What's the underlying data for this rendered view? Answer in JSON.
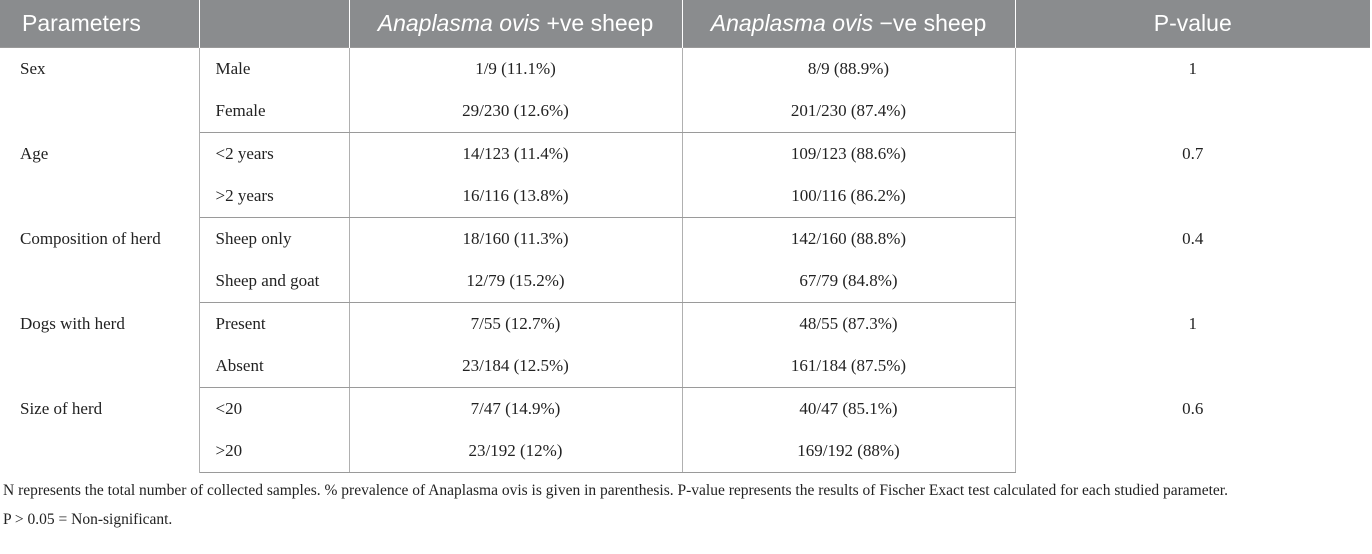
{
  "table": {
    "headers": {
      "parameters": "Parameters",
      "blank": "",
      "positive_italic": "Anaplasma ovis",
      "positive_rest": " +ve sheep",
      "negative_italic": "Anaplasma ovis",
      "negative_rest": " −ve sheep",
      "pvalue": "P-value"
    },
    "groups": [
      {
        "parameter": "Sex",
        "p_value": "1",
        "rows": [
          {
            "level": "Male",
            "positive": "1/9 (11.1%)",
            "negative": "8/9 (88.9%)"
          },
          {
            "level": "Female",
            "positive": "29/230 (12.6%)",
            "negative": "201/230 (87.4%)"
          }
        ]
      },
      {
        "parameter": "Age",
        "p_value": "0.7",
        "rows": [
          {
            "level": "<2 years",
            "positive": "14/123 (11.4%)",
            "negative": "109/123 (88.6%)"
          },
          {
            "level": ">2 years",
            "positive": "16/116 (13.8%)",
            "negative": "100/116 (86.2%)"
          }
        ]
      },
      {
        "parameter": "Composition of herd",
        "p_value": "0.4",
        "rows": [
          {
            "level": "Sheep only",
            "positive": "18/160 (11.3%)",
            "negative": "142/160 (88.8%)"
          },
          {
            "level": "Sheep and goat",
            "positive": "12/79 (15.2%)",
            "negative": "67/79 (84.8%)"
          }
        ]
      },
      {
        "parameter": "Dogs with herd",
        "p_value": "1",
        "rows": [
          {
            "level": "Present",
            "positive": "7/55 (12.7%)",
            "negative": "48/55 (87.3%)"
          },
          {
            "level": "Absent",
            "positive": "23/184 (12.5%)",
            "negative": "161/184 (87.5%)"
          }
        ]
      },
      {
        "parameter": "Size of herd",
        "p_value": "0.6",
        "rows": [
          {
            "level": "<20",
            "positive": "7/47 (14.9%)",
            "negative": "40/47 (85.1%)"
          },
          {
            "level": ">20",
            "positive": "23/192 (12%)",
            "negative": "169/192 (88%)"
          }
        ]
      }
    ]
  },
  "footnotes": {
    "note1": "N represents the total number of collected samples. % prevalence of Anaplasma ovis is given in parenthesis. P-value represents the results of Fischer Exact test calculated for each studied parameter.",
    "note2": "P > 0.05 = Non-significant."
  }
}
